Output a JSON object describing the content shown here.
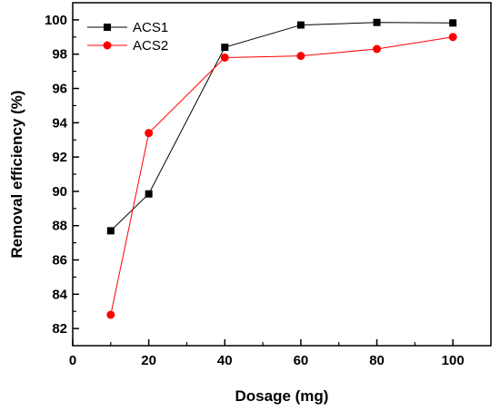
{
  "chart_data": {
    "type": "line",
    "title": "",
    "xlabel": "Dosage (mg)",
    "ylabel": "Removal efficiency (%)",
    "xlim": [
      0,
      110
    ],
    "ylim": [
      81,
      101
    ],
    "x_ticks": [
      0,
      20,
      40,
      60,
      80,
      100
    ],
    "y_ticks": [
      82,
      84,
      86,
      88,
      90,
      92,
      94,
      96,
      98,
      100
    ],
    "grid": false,
    "legend_position": "top-left",
    "x": [
      10,
      20,
      40,
      60,
      80,
      100
    ],
    "series": [
      {
        "name": "ACS1",
        "color": "#000000",
        "marker": "square",
        "values": [
          87.7,
          89.85,
          98.4,
          99.7,
          99.85,
          99.82
        ]
      },
      {
        "name": "ACS2",
        "color": "#ff0000",
        "marker": "circle",
        "values": [
          82.8,
          93.4,
          97.8,
          97.9,
          98.3,
          99.0
        ]
      }
    ]
  }
}
